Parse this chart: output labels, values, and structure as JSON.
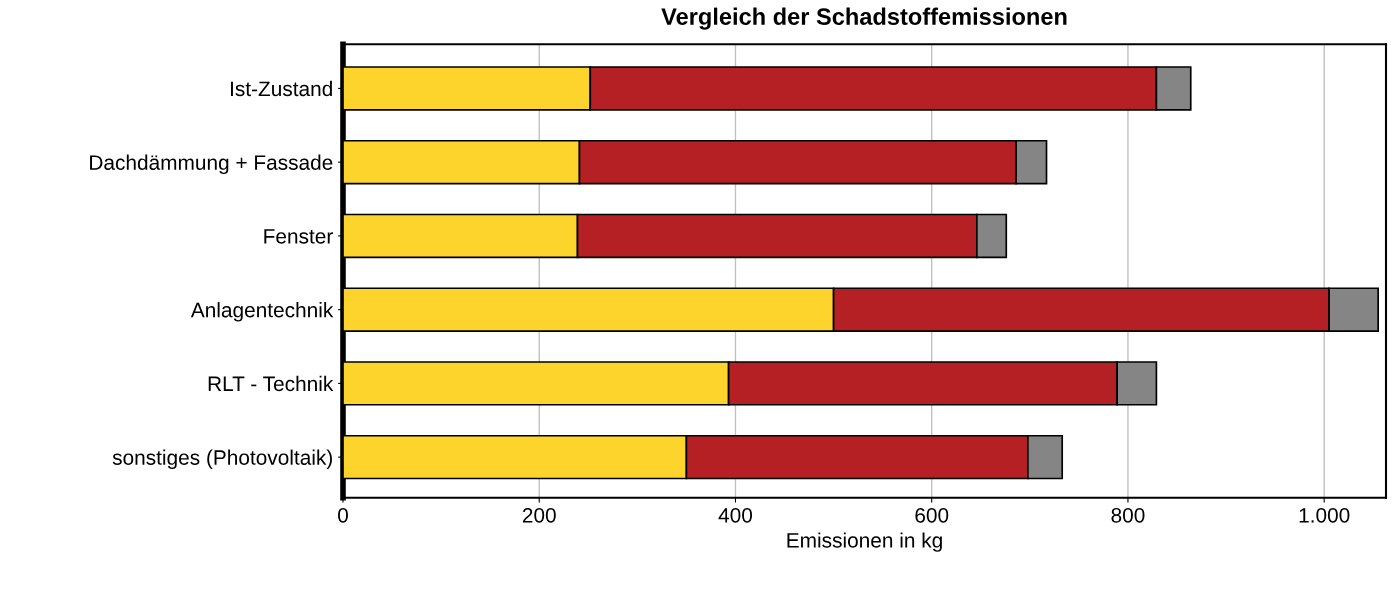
{
  "chart_data": {
    "type": "bar",
    "orientation": "horizontal",
    "stacked": true,
    "title": "Vergleich der Schadstoffemissionen",
    "xlabel": "Emissionen in kg",
    "categories": [
      "Ist-Zustand",
      "Dachdämmung + Fassade",
      "Fenster",
      "Anlagentechnik",
      "RLT - Technik",
      "sonstiges (Photovoltaik)"
    ],
    "series": [
      {
        "color": "#fcd42c",
        "values": [
          252,
          241,
          239,
          500,
          393,
          350
        ]
      },
      {
        "color": "#b52024",
        "values": [
          577,
          445,
          407,
          505,
          396,
          348
        ]
      },
      {
        "color": "#858585",
        "values": [
          35,
          31,
          30,
          50,
          40,
          35
        ]
      }
    ],
    "xlim": [
      0,
      1063
    ],
    "xticks": [
      0,
      200,
      400,
      600,
      800,
      {
        "value": 1000,
        "label": "1.000"
      }
    ],
    "grid": "x",
    "legend": false
  }
}
